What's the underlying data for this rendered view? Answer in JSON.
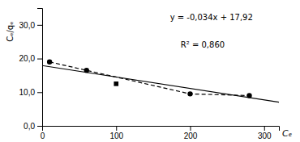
{
  "chart_data": {
    "type": "scatter",
    "x_label": "Cₑ",
    "y_label": "Cₑ/qₑ",
    "annotations": [
      "y = -0,034x + 17,92",
      "R² = 0,860"
    ],
    "series": [
      {
        "type": "line",
        "color": "black",
        "line_style": "solid",
        "x": [
          0,
          320
        ],
        "values": [
          17.92,
          7.04
        ]
      },
      {
        "type": "scatter",
        "color": "black",
        "marker": "circle",
        "line_style": "dashed",
        "x": [
          10,
          60,
          200,
          280
        ],
        "values": [
          19.0,
          16.5,
          9.5,
          9.0
        ]
      },
      {
        "type": "scatter",
        "color": "black",
        "marker": "square",
        "x": [
          100
        ],
        "values": [
          12.5
        ]
      }
    ],
    "xlim": [
      0,
      320
    ],
    "ylim": [
      0,
      35
    ],
    "xticks": [
      0,
      100,
      200,
      300
    ],
    "yticks": [
      {
        "value": 0.0,
        "label": "0,0"
      },
      {
        "value": 10.0,
        "label": "10,0"
      },
      {
        "value": 20.0,
        "label": "20,0"
      },
      {
        "value": 30.0,
        "label": "30,0"
      }
    ],
    "grid": false
  }
}
